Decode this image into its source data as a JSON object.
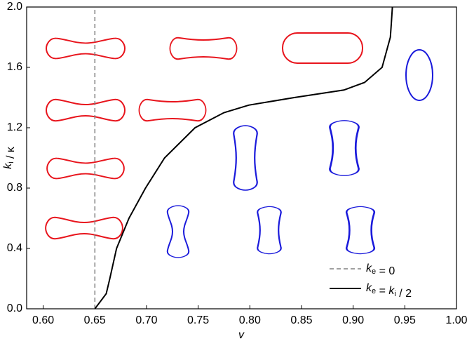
{
  "chart_data": {
    "type": "line",
    "xlabel": "v",
    "ylabel": "ki / κ",
    "xlim": [
      0.584,
      1.0
    ],
    "ylim": [
      0,
      2
    ],
    "xticks": [
      {
        "value": 0.6,
        "label": "0.60"
      },
      {
        "value": 0.65,
        "label": "0.65"
      },
      {
        "value": 0.7,
        "label": "0.70"
      },
      {
        "value": 0.75,
        "label": "0.75"
      },
      {
        "value": 0.8,
        "label": "0.80"
      },
      {
        "value": 0.85,
        "label": "0.85"
      },
      {
        "value": 0.9,
        "label": "0.90"
      },
      {
        "value": 0.95,
        "label": "0.95"
      },
      {
        "value": 1.0,
        "label": "1.00"
      }
    ],
    "yticks": [
      {
        "value": 0,
        "label": "0.0"
      },
      {
        "value": 0.4,
        "label": "0.4"
      },
      {
        "value": 0.8,
        "label": "0.8"
      },
      {
        "value": 1.2,
        "label": "1.2"
      },
      {
        "value": 1.6,
        "label": "1.6"
      },
      {
        "value": 2,
        "label": "2.0"
      }
    ],
    "legend": "lower right",
    "series": [
      {
        "name": "ke = 0",
        "color": "#808080",
        "dash": true,
        "x": [
          0.65,
          0.65
        ],
        "values": [
          0,
          2
        ]
      },
      {
        "name": "ke = ki / 2",
        "color": "#000000",
        "dash": false,
        "x": [
          0.65,
          0.661,
          0.6645,
          0.671,
          0.683,
          0.699,
          0.7175,
          0.747,
          0.775,
          0.799,
          0.843,
          0.891,
          0.911,
          0.928,
          0.936,
          0.937,
          0.938
        ],
        "values": [
          0,
          0.1,
          0.2,
          0.4,
          0.6,
          0.8,
          1.0,
          1.2,
          1.3,
          1.35,
          1.4,
          1.45,
          1.5,
          1.6,
          1.8,
          1.9,
          2.0
        ]
      }
    ]
  }
}
